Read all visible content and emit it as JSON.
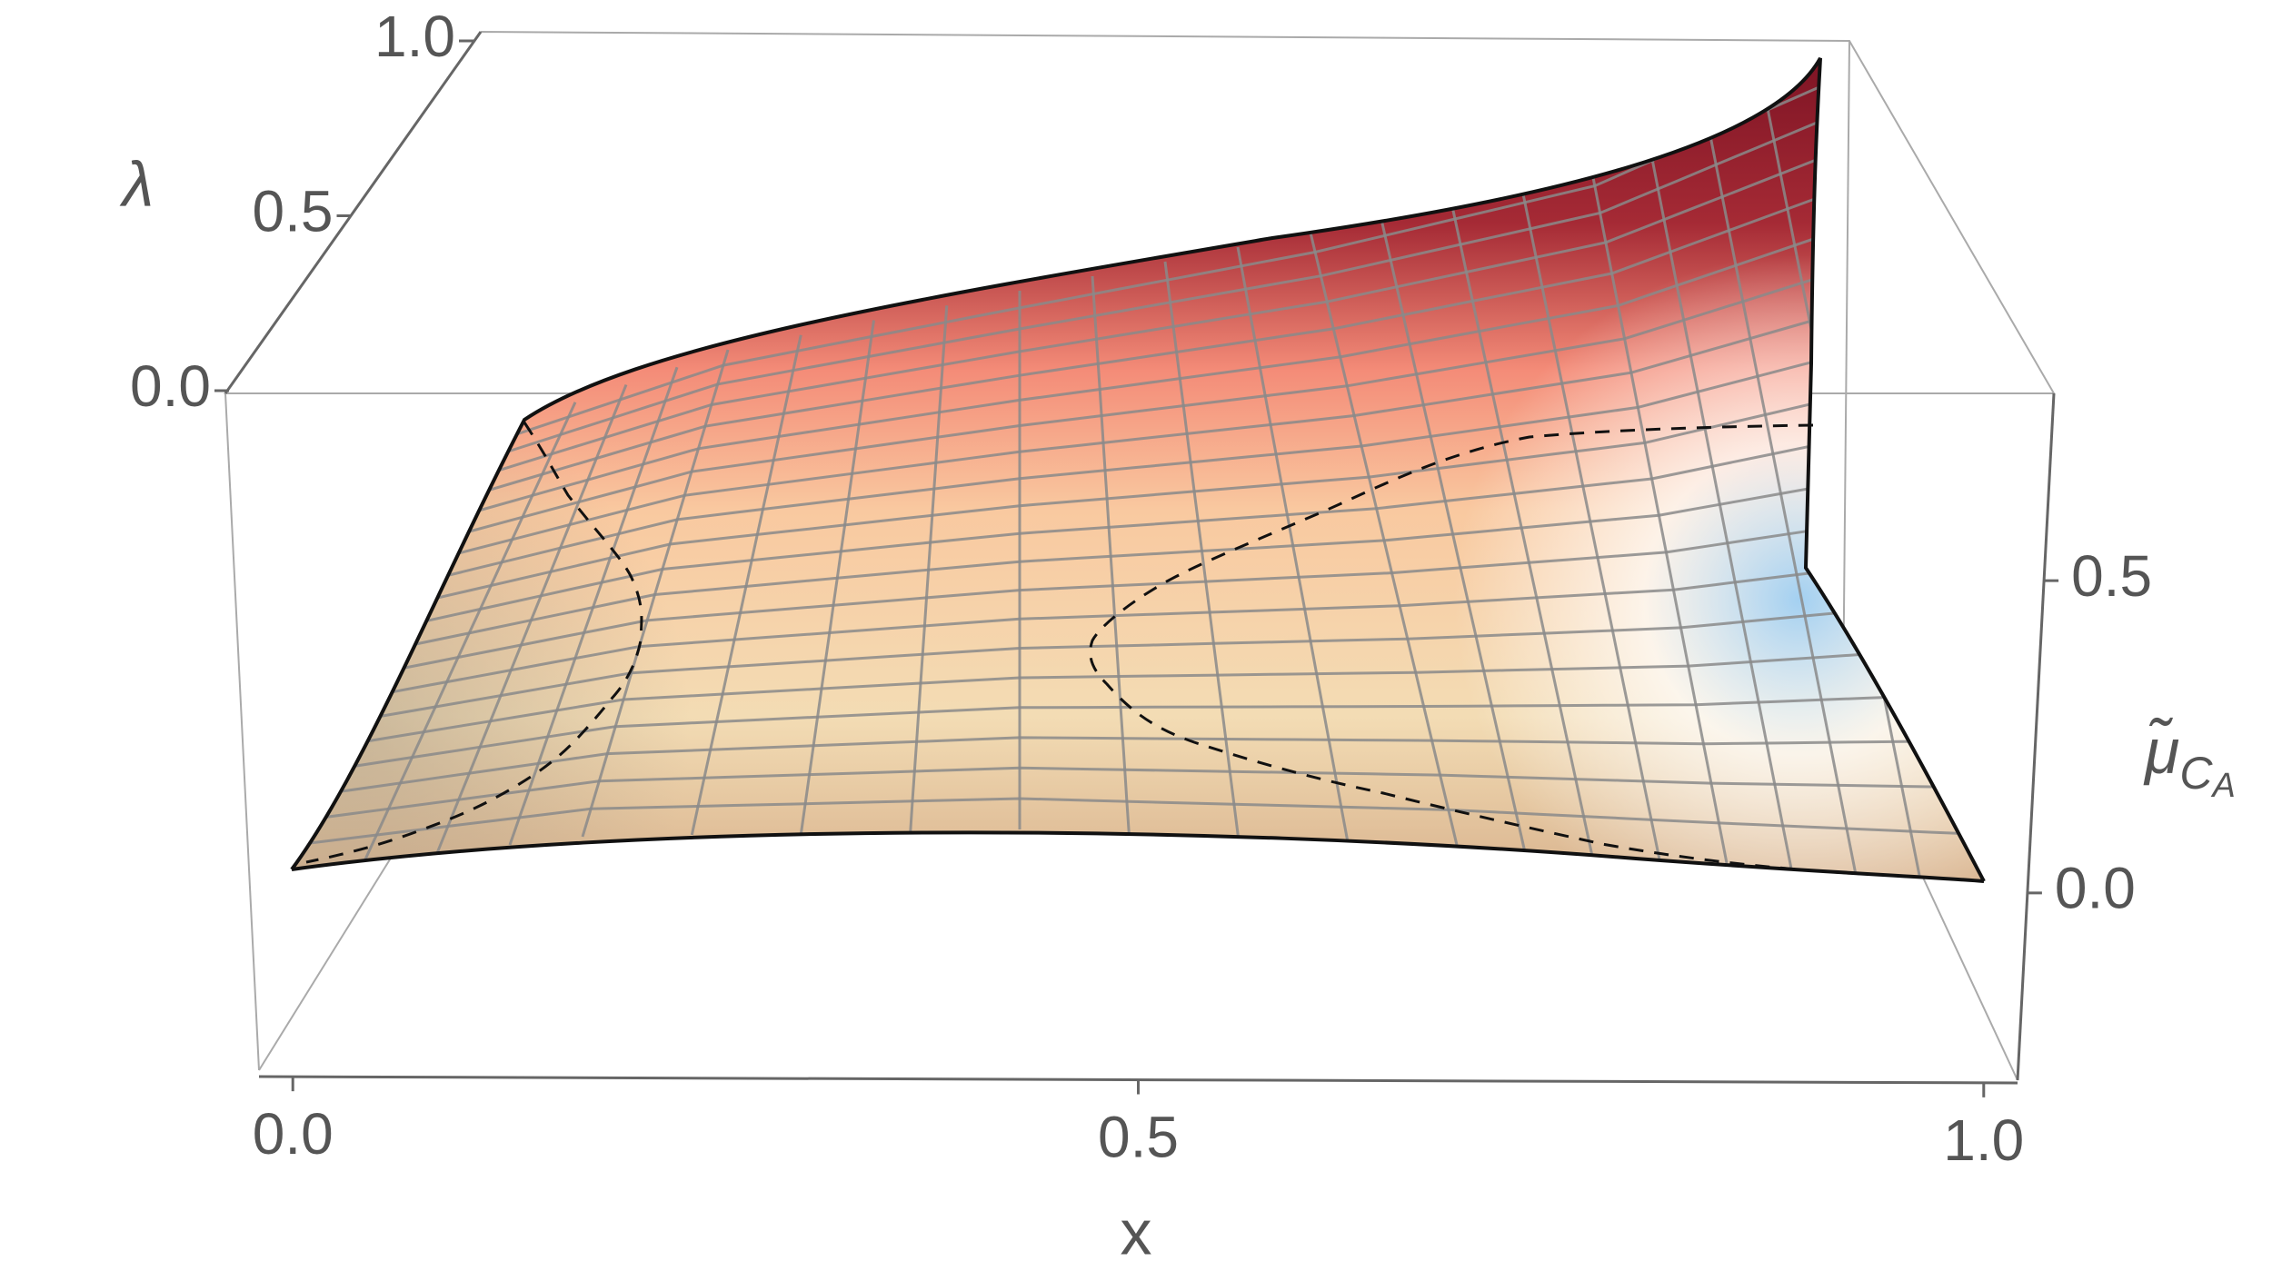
{
  "chart_data": {
    "type": "surface",
    "x_label": "x",
    "y_label": "λ",
    "z_label": {
      "main": "μ̃",
      "sub": "C",
      "subsub": "A"
    },
    "xlim": [
      -0.02,
      1.02
    ],
    "xticks": [
      {
        "value": 0,
        "label": "0.0"
      },
      {
        "value": 0.5,
        "label": "0.5"
      },
      {
        "value": 1,
        "label": "1.0"
      }
    ],
    "ylim": [
      0,
      1
    ],
    "yticks": [
      {
        "value": 0,
        "label": "0.0"
      },
      {
        "value": 0.5,
        "label": "0.5"
      },
      {
        "value": 1,
        "label": "1.0"
      }
    ],
    "zlim": [
      -0.3,
      0.8
    ],
    "zticks": [
      {
        "value": 0,
        "label": "0.0"
      },
      {
        "value": 0.5,
        "label": "0.5"
      }
    ]
  }
}
